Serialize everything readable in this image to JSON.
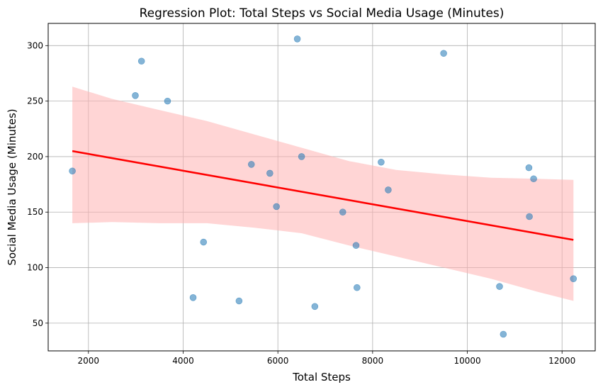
{
  "chart_data": {
    "type": "scatter",
    "title": "Regression Plot: Total Steps vs Social Media Usage (Minutes)",
    "xlabel": "Total Steps",
    "ylabel": "Social Media Usage (Minutes)",
    "xlim": [
      1150,
      12700
    ],
    "ylim": [
      25,
      320
    ],
    "xticks": [
      2000,
      4000,
      6000,
      8000,
      10000,
      12000
    ],
    "yticks": [
      50,
      100,
      150,
      200,
      250,
      300
    ],
    "grid": true,
    "points": [
      {
        "x": 1660,
        "y": 187
      },
      {
        "x": 2990,
        "y": 255
      },
      {
        "x": 3120,
        "y": 286
      },
      {
        "x": 3670,
        "y": 250
      },
      {
        "x": 4210,
        "y": 73
      },
      {
        "x": 4430,
        "y": 123
      },
      {
        "x": 5180,
        "y": 70
      },
      {
        "x": 5440,
        "y": 193
      },
      {
        "x": 5830,
        "y": 185
      },
      {
        "x": 5970,
        "y": 155
      },
      {
        "x": 6410,
        "y": 306
      },
      {
        "x": 6500,
        "y": 200
      },
      {
        "x": 6780,
        "y": 65
      },
      {
        "x": 7370,
        "y": 150
      },
      {
        "x": 7650,
        "y": 120
      },
      {
        "x": 7670,
        "y": 82
      },
      {
        "x": 8180,
        "y": 195
      },
      {
        "x": 8330,
        "y": 170
      },
      {
        "x": 9500,
        "y": 293
      },
      {
        "x": 10680,
        "y": 83
      },
      {
        "x": 10760,
        "y": 40
      },
      {
        "x": 11300,
        "y": 190
      },
      {
        "x": 11310,
        "y": 146
      },
      {
        "x": 11400,
        "y": 180
      },
      {
        "x": 12240,
        "y": 90
      }
    ],
    "regression_line": {
      "x": [
        1660,
        12240
      ],
      "y": [
        205,
        125
      ]
    },
    "confidence_band": {
      "x": [
        1660,
        2500,
        3500,
        4500,
        5500,
        6500,
        7500,
        8500,
        9500,
        10500,
        11500,
        12240
      ],
      "upper": [
        263,
        252,
        242,
        232,
        220,
        208,
        196,
        188,
        184,
        181,
        180,
        179
      ],
      "lower": [
        140,
        141,
        140,
        140,
        136,
        131,
        120,
        110,
        100,
        90,
        78,
        70
      ]
    },
    "colors": {
      "points": "#1f77b4",
      "line": "#ff0000",
      "band": "#ffb3b3",
      "grid": "#b0b0b0"
    }
  }
}
